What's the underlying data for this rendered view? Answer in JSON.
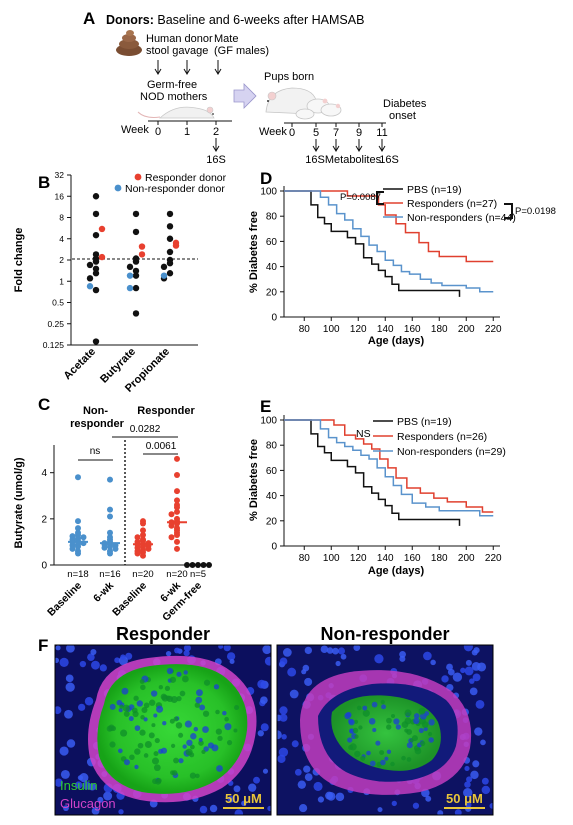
{
  "panel_letters": {
    "a": "A",
    "b": "B",
    "c": "C",
    "d": "D",
    "e": "E",
    "f": "F"
  },
  "panelA": {
    "title_bold": "Donors:",
    "title_rest": " Baseline and 6-weeks after HAMSAB",
    "donor_label": [
      "Human donor",
      "stool gavage"
    ],
    "mate_label": [
      "Mate",
      "(GF males)"
    ],
    "mothers_label": [
      "Germ-free",
      "NOD mothers"
    ],
    "pups_label": "Pups born",
    "diabetes_label": [
      "Diabetes",
      "onset"
    ],
    "week_label": "Week",
    "mother_weeks": [
      "0",
      "1",
      "2"
    ],
    "pup_weeks": [
      "0",
      "5",
      "7",
      "9",
      "11"
    ],
    "mother_sample": "16S",
    "pup_samples": [
      "16S",
      "Metabolites",
      "16S"
    ],
    "colors": {
      "arrow": "#c9c6ea",
      "poop": "#8a5a3c"
    }
  },
  "chart_data": [
    {
      "panel": "B",
      "type": "scatter",
      "ylabel": "Fold change",
      "yscale": "log2",
      "yticks": [
        "32",
        "16",
        "8",
        "4",
        "2",
        "1",
        "0.5",
        "0.25",
        "0.125"
      ],
      "ylim": [
        0.125,
        32
      ],
      "reference_line": 2,
      "categories": [
        "Acetate",
        "Butyrate",
        "Propionate"
      ],
      "legend": [
        {
          "label": "Responder donor",
          "color": "#e8402f"
        },
        {
          "label": "Non-responder donor",
          "color": "#4a90cc"
        }
      ],
      "series": [
        {
          "group": "nonresp",
          "color": "#111111",
          "points": [
            [
              0,
              16
            ],
            [
              0,
              9
            ],
            [
              0,
              4.5
            ],
            [
              0,
              2.4
            ],
            [
              0,
              2.1
            ],
            [
              0,
              1.9
            ],
            [
              0,
              1.7
            ],
            [
              0,
              1.5
            ],
            [
              0,
              1.3
            ],
            [
              0,
              1.1
            ],
            [
              0,
              0.75
            ],
            [
              0,
              0.14
            ],
            [
              1,
              9
            ],
            [
              1,
              5
            ],
            [
              1,
              2.1
            ],
            [
              1,
              1.9
            ],
            [
              1,
              1.6
            ],
            [
              1,
              1.4
            ],
            [
              1,
              1.2
            ],
            [
              1,
              0.8
            ],
            [
              1,
              0.35
            ],
            [
              2,
              9
            ],
            [
              2,
              6
            ],
            [
              2,
              4
            ],
            [
              2,
              2.6
            ],
            [
              2,
              2.0
            ],
            [
              2,
              1.8
            ],
            [
              2,
              1.6
            ],
            [
              2,
              1.3
            ],
            [
              2,
              1.1
            ]
          ]
        },
        {
          "group": "resp",
          "color": "#e8402f",
          "points": [
            [
              0,
              5.5
            ],
            [
              0,
              2.2
            ],
            [
              1,
              3.1
            ],
            [
              1,
              2.4
            ],
            [
              2,
              3.2
            ],
            [
              2,
              3.5
            ]
          ]
        },
        {
          "group": "nonresp_donor",
          "color": "#4a90cc",
          "points": [
            [
              0,
              0.85
            ],
            [
              1,
              1.2
            ],
            [
              1,
              0.8
            ],
            [
              2,
              1.2
            ]
          ]
        }
      ]
    },
    {
      "panel": "C",
      "type": "scatter",
      "ylabel": "Butyrate (umol/g)",
      "yticks": [
        "0",
        "2",
        "4"
      ],
      "ylim": [
        0,
        5.2
      ],
      "categories": [
        "Baseline",
        "6-wk",
        "Baseline",
        "6-wk",
        "Germ-free"
      ],
      "n_labels": [
        "n=18",
        "n=16",
        "n=20",
        "n=20",
        "n=5"
      ],
      "group_labels": [
        [
          "Non-",
          "responder"
        ],
        [
          "Responder"
        ]
      ],
      "brackets": [
        {
          "label": "ns"
        },
        {
          "label": "0.0061"
        },
        {
          "label": "0.0282"
        }
      ],
      "series": [
        {
          "color": "#4a90cc",
          "median": 1.0,
          "values": [
            3.8,
            1.9,
            1.6,
            1.4,
            1.3,
            1.25,
            1.2,
            1.15,
            1.1,
            1.05,
            1.0,
            0.95,
            0.9,
            0.85,
            0.8,
            0.7,
            0.6,
            0.5
          ]
        },
        {
          "color": "#4a90cc",
          "median": 0.95,
          "values": [
            3.7,
            2.4,
            2.1,
            1.4,
            1.2,
            1.1,
            1.0,
            0.95,
            0.9,
            0.9,
            0.85,
            0.8,
            0.75,
            0.7,
            0.6,
            0.5
          ]
        },
        {
          "color": "#e8402f",
          "median": 0.9,
          "values": [
            1.9,
            1.8,
            1.5,
            1.3,
            1.2,
            1.1,
            1.05,
            1.0,
            0.95,
            0.9,
            0.9,
            0.85,
            0.8,
            0.75,
            0.7,
            0.65,
            0.6,
            0.55,
            0.5,
            0.4
          ]
        },
        {
          "color": "#e8402f",
          "median": 1.85,
          "values": [
            4.6,
            3.9,
            3.2,
            2.8,
            2.6,
            2.5,
            2.3,
            2.2,
            2.0,
            1.9,
            1.85,
            1.8,
            1.7,
            1.6,
            1.5,
            1.4,
            1.3,
            1.2,
            1.0,
            0.7
          ]
        },
        {
          "color": "#111111",
          "median": 0.0,
          "values": [
            0.0,
            0.0,
            0.0,
            0.0,
            0.0
          ]
        }
      ]
    },
    {
      "panel": "D",
      "type": "line",
      "xlabel": "Age (days)",
      "ylabel": "% Diabetes free",
      "xticks": [
        "80",
        "100",
        "120",
        "140",
        "160",
        "180",
        "200",
        "220"
      ],
      "yticks": [
        "0",
        "20",
        "40",
        "60",
        "80",
        "100"
      ],
      "xlim": [
        65,
        225
      ],
      "ylim": [
        0,
        100
      ],
      "pvalues": [
        "P=0.0087",
        "P=0.0198"
      ],
      "series": [
        {
          "name": "PBS (n=19)",
          "color": "#111111",
          "x": [
            65,
            78,
            85,
            90,
            95,
            100,
            105,
            112,
            118,
            124,
            130,
            135,
            140,
            145,
            150,
            160,
            195
          ],
          "y": [
            100,
            100,
            89,
            79,
            74,
            68,
            68,
            63,
            58,
            47,
            42,
            37,
            32,
            26,
            21,
            21,
            16
          ]
        },
        {
          "name": "Responders (n=27)",
          "color": "#e0402f",
          "x": [
            65,
            105,
            112,
            130,
            135,
            140,
            148,
            155,
            165,
            172,
            180,
            190,
            200,
            220
          ],
          "y": [
            100,
            100,
            96,
            96,
            89,
            81,
            74,
            67,
            59,
            52,
            48,
            48,
            44,
            44
          ]
        },
        {
          "name": "Non-responders (n=44)",
          "color": "#5a93cc",
          "x": [
            65,
            85,
            92,
            98,
            104,
            110,
            116,
            122,
            128,
            134,
            140,
            146,
            152,
            158,
            166,
            174,
            182,
            190,
            200,
            210,
            220
          ],
          "y": [
            100,
            100,
            95,
            89,
            82,
            77,
            70,
            64,
            57,
            52,
            45,
            41,
            36,
            34,
            30,
            27,
            25,
            25,
            23,
            20,
            20
          ]
        }
      ]
    },
    {
      "panel": "E",
      "type": "line",
      "xlabel": "Age (days)",
      "ylabel": "% Diabetes free",
      "xticks": [
        "80",
        "100",
        "120",
        "140",
        "160",
        "180",
        "200",
        "220"
      ],
      "yticks": [
        "0",
        "20",
        "40",
        "60",
        "80",
        "100"
      ],
      "xlim": [
        65,
        225
      ],
      "ylim": [
        0,
        100
      ],
      "annotation": "NS",
      "series": [
        {
          "name": "PBS (n=19)",
          "color": "#111111",
          "x": [
            65,
            78,
            85,
            90,
            95,
            100,
            105,
            112,
            118,
            124,
            130,
            135,
            140,
            145,
            150,
            160,
            195
          ],
          "y": [
            100,
            100,
            89,
            79,
            74,
            68,
            68,
            63,
            58,
            47,
            42,
            37,
            32,
            26,
            21,
            21,
            16
          ]
        },
        {
          "name": "Responders (n=26)",
          "color": "#e0402f",
          "x": [
            65,
            88,
            102,
            110,
            118,
            124,
            130,
            136,
            142,
            148,
            156,
            166,
            176,
            186,
            200,
            212,
            220
          ],
          "y": [
            100,
            100,
            96,
            88,
            85,
            81,
            77,
            69,
            62,
            54,
            46,
            42,
            38,
            35,
            31,
            27,
            27
          ]
        },
        {
          "name": "Non-responders (n=29)",
          "color": "#5a93cc",
          "x": [
            65,
            85,
            92,
            98,
            104,
            110,
            116,
            122,
            128,
            134,
            140,
            146,
            152,
            160,
            170,
            180,
            195,
            210,
            220
          ],
          "y": [
            100,
            100,
            93,
            86,
            82,
            79,
            76,
            72,
            69,
            62,
            55,
            48,
            41,
            34,
            31,
            28,
            28,
            24,
            24
          ]
        }
      ]
    }
  ],
  "panelF": {
    "titles": [
      "Responder",
      "Non-responder"
    ],
    "legend": [
      "Insulin",
      "Glucagon"
    ],
    "scale_label": "50 μM",
    "colors": {
      "insulin": "#2ecc2e",
      "glucagon": "#d243c9",
      "nuclei": "#1f2fd0",
      "scale": "#e8c53a"
    }
  }
}
